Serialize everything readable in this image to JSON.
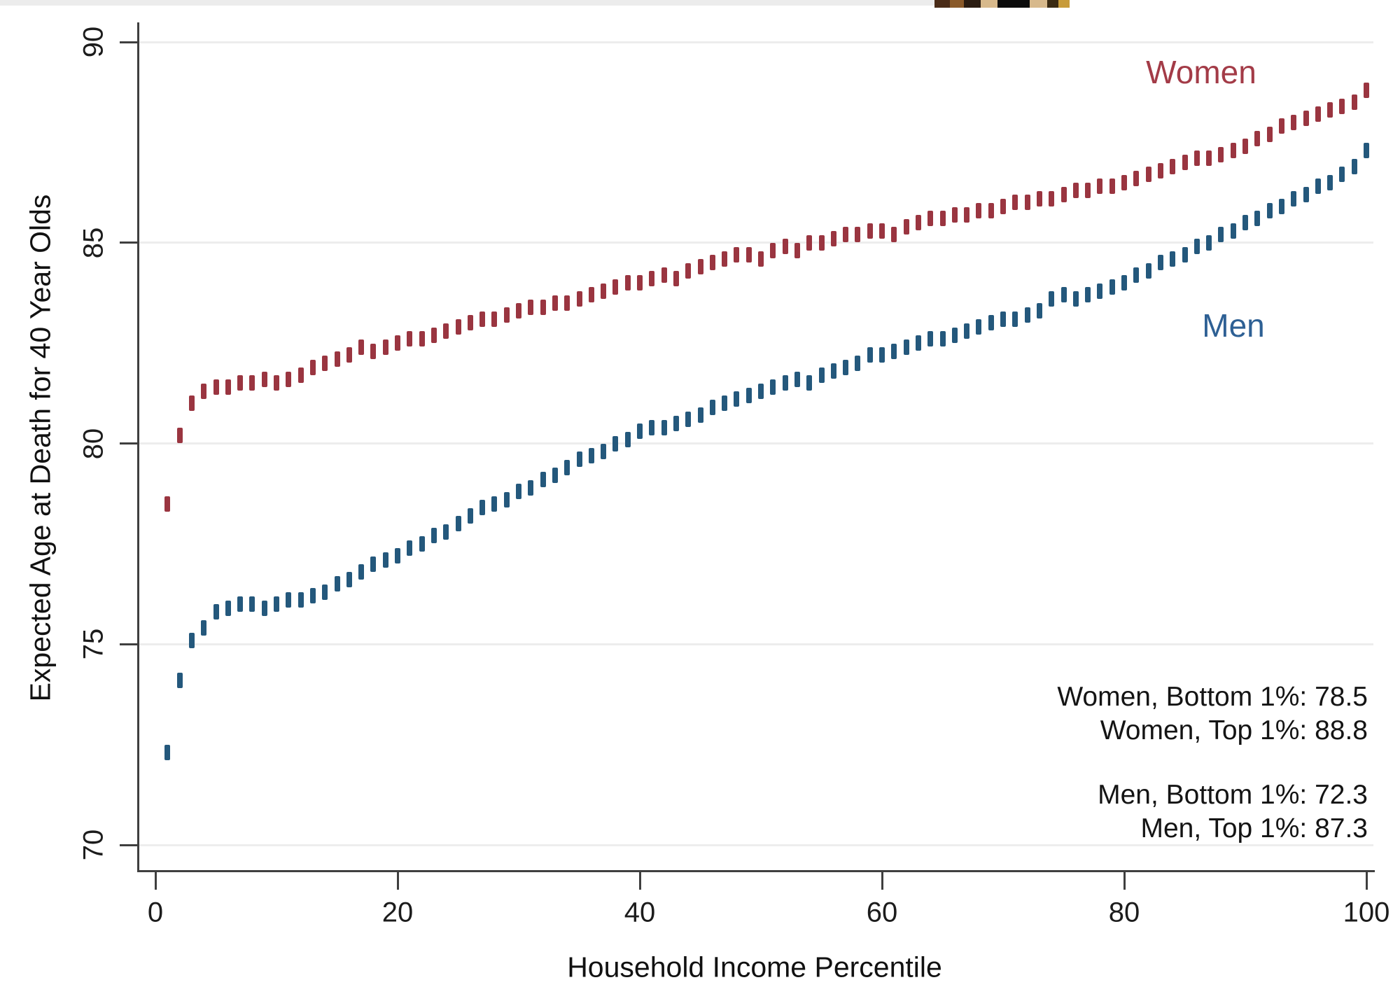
{
  "figure": {
    "y_axis_title": "Expected Age at Death for 40 Year Olds",
    "x_axis_title": "Household Income Percentile",
    "women_label": "Women",
    "men_label": "Men",
    "annotations": [
      "Women, Bottom 1%: 78.5",
      "Women, Top 1%: 88.8",
      "Men, Bottom 1%: 72.3",
      "Men, Top 1%: 87.3"
    ],
    "colors": {
      "women_points": "#9a3540",
      "men_points": "#24587c",
      "women_label": "#a33b47",
      "men_label": "#2e6094",
      "gridline": "#ededed",
      "axis": "#3f3f3f",
      "text": "#1c1c1c"
    },
    "artifact_segment_colors": [
      "#5a3a22",
      "#2b1d12",
      "#c9a briefly",
      "#000000"
    ]
  },
  "chart_data": {
    "type": "scatter",
    "marker": "vertical-dash",
    "title": "",
    "xlabel": "Household Income Percentile",
    "ylabel": "Expected Age at Death for 40 Year Olds",
    "xlim": [
      0,
      100
    ],
    "ylim": [
      69.4,
      90.5
    ],
    "x_ticks": [
      0,
      20,
      40,
      60,
      80,
      100
    ],
    "y_ticks": [
      70,
      75,
      80,
      85,
      90
    ],
    "grid": "horizontal",
    "legend_position": "inline-labels",
    "highlights": {
      "women_bottom_1pct": 78.5,
      "women_top_1pct": 88.8,
      "men_bottom_1pct": 72.3,
      "men_top_1pct": 87.3
    },
    "x": [
      1,
      2,
      3,
      4,
      5,
      6,
      7,
      8,
      9,
      10,
      11,
      12,
      13,
      14,
      15,
      16,
      17,
      18,
      19,
      20,
      21,
      22,
      23,
      24,
      25,
      26,
      27,
      28,
      29,
      30,
      31,
      32,
      33,
      34,
      35,
      36,
      37,
      38,
      39,
      40,
      41,
      42,
      43,
      44,
      45,
      46,
      47,
      48,
      49,
      50,
      51,
      52,
      53,
      54,
      55,
      56,
      57,
      58,
      59,
      60,
      61,
      62,
      63,
      64,
      65,
      66,
      67,
      68,
      69,
      70,
      71,
      72,
      73,
      74,
      75,
      76,
      77,
      78,
      79,
      80,
      81,
      82,
      83,
      84,
      85,
      86,
      87,
      88,
      89,
      90,
      91,
      92,
      93,
      94,
      95,
      96,
      97,
      98,
      99,
      100
    ],
    "series": [
      {
        "name": "Women",
        "color": "#9a3540",
        "values": [
          78.5,
          80.2,
          81.0,
          81.3,
          81.4,
          81.4,
          81.5,
          81.5,
          81.6,
          81.5,
          81.6,
          81.7,
          81.9,
          82.0,
          82.1,
          82.2,
          82.4,
          82.3,
          82.4,
          82.5,
          82.6,
          82.6,
          82.7,
          82.8,
          82.9,
          83.0,
          83.1,
          83.1,
          83.2,
          83.3,
          83.4,
          83.4,
          83.5,
          83.5,
          83.6,
          83.7,
          83.8,
          83.9,
          84.0,
          84.0,
          84.1,
          84.2,
          84.1,
          84.3,
          84.4,
          84.5,
          84.6,
          84.7,
          84.7,
          84.6,
          84.8,
          84.9,
          84.8,
          85.0,
          85.0,
          85.1,
          85.2,
          85.2,
          85.3,
          85.3,
          85.2,
          85.4,
          85.5,
          85.6,
          85.6,
          85.7,
          85.7,
          85.8,
          85.8,
          85.9,
          86.0,
          86.0,
          86.1,
          86.1,
          86.2,
          86.3,
          86.3,
          86.4,
          86.4,
          86.5,
          86.6,
          86.7,
          86.8,
          86.9,
          87.0,
          87.1,
          87.1,
          87.2,
          87.3,
          87.4,
          87.6,
          87.7,
          87.9,
          88.0,
          88.1,
          88.2,
          88.3,
          88.4,
          88.5,
          88.8
        ]
      },
      {
        "name": "Men",
        "color": "#24587c",
        "values": [
          72.3,
          74.1,
          75.1,
          75.4,
          75.8,
          75.9,
          76.0,
          76.0,
          75.9,
          76.0,
          76.1,
          76.1,
          76.2,
          76.3,
          76.5,
          76.6,
          76.8,
          77.0,
          77.1,
          77.2,
          77.4,
          77.5,
          77.7,
          77.8,
          78.0,
          78.2,
          78.4,
          78.5,
          78.6,
          78.8,
          78.9,
          79.1,
          79.2,
          79.4,
          79.6,
          79.7,
          79.8,
          80.0,
          80.1,
          80.3,
          80.4,
          80.4,
          80.5,
          80.6,
          80.7,
          80.9,
          81.0,
          81.1,
          81.2,
          81.3,
          81.4,
          81.5,
          81.6,
          81.5,
          81.7,
          81.8,
          81.9,
          82.0,
          82.2,
          82.2,
          82.3,
          82.4,
          82.5,
          82.6,
          82.6,
          82.7,
          82.8,
          82.9,
          83.0,
          83.1,
          83.1,
          83.2,
          83.3,
          83.6,
          83.7,
          83.6,
          83.7,
          83.8,
          83.9,
          84.0,
          84.2,
          84.3,
          84.5,
          84.6,
          84.7,
          84.9,
          85.0,
          85.2,
          85.3,
          85.5,
          85.6,
          85.8,
          85.9,
          86.1,
          86.2,
          86.4,
          86.5,
          86.7,
          86.9,
          87.3
        ]
      }
    ]
  }
}
